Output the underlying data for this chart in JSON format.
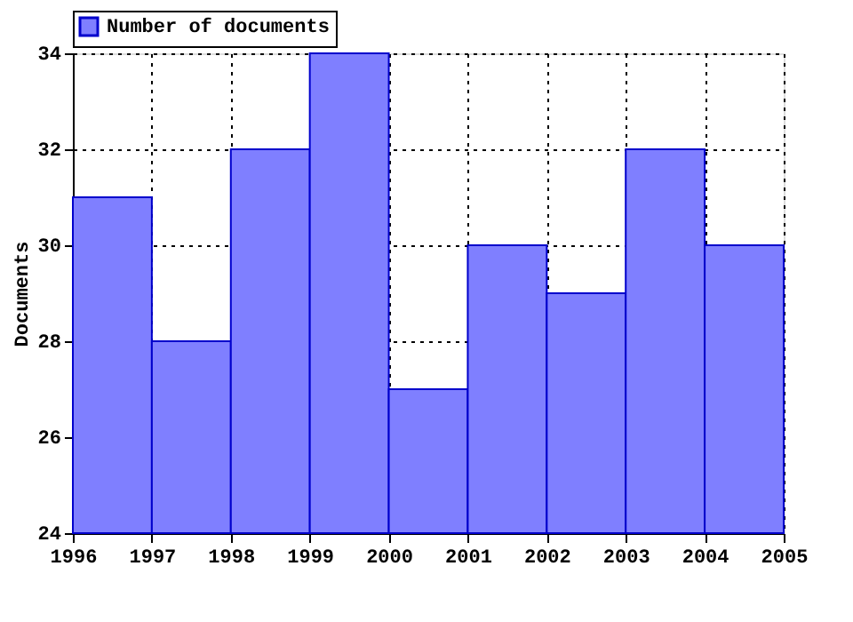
{
  "chart_data": {
    "type": "histogram",
    "ylabel": "Documents",
    "bins": [
      1996,
      1997,
      1998,
      1999,
      2000,
      2001,
      2002,
      2003,
      2004,
      2005
    ],
    "series": [
      {
        "name": "Number of documents",
        "color": "#7f7fff",
        "values": [
          31,
          28,
          32,
          34,
          27,
          30,
          29,
          32,
          30
        ]
      }
    ],
    "xlim": [
      1996,
      2005
    ],
    "xticks": [
      1996,
      1997,
      1998,
      1999,
      2000,
      2001,
      2002,
      2003,
      2004,
      2005
    ],
    "ylim": [
      24,
      34
    ],
    "yticks": [
      24,
      26,
      28,
      30,
      32,
      34
    ],
    "grid": true,
    "legend": "top left"
  }
}
